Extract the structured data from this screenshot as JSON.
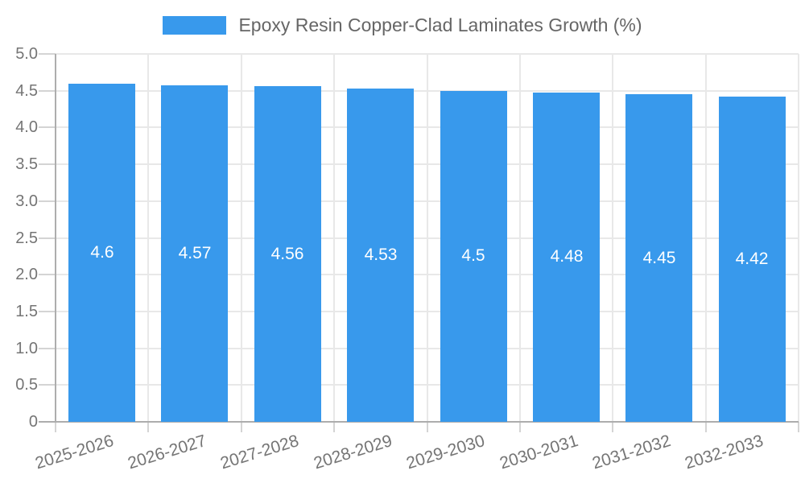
{
  "chart_data": {
    "type": "bar",
    "legend": "Epoxy Resin Copper-Clad Laminates Growth (%)",
    "legend_position": "top",
    "categories": [
      "2025-2026",
      "2026-2027",
      "2027-2028",
      "2028-2029",
      "2029-2030",
      "2030-2031",
      "2031-2032",
      "2032-2033"
    ],
    "values": [
      4.6,
      4.57,
      4.56,
      4.53,
      4.5,
      4.48,
      4.45,
      4.42
    ],
    "value_labels": [
      "4.6",
      "4.57",
      "4.56",
      "4.53",
      "4.5",
      "4.48",
      "4.45",
      "4.42"
    ],
    "xlabel": "",
    "ylabel": "",
    "ylim": [
      0,
      5
    ],
    "y_tick_step": 0.5,
    "y_tick_labels": [
      "0",
      "0.5",
      "1.0",
      "1.5",
      "2.0",
      "2.5",
      "3.0",
      "3.5",
      "4.0",
      "4.5",
      "5.0"
    ],
    "grid": true,
    "colors": {
      "bar": "#3899EC",
      "grid": "#E8E8E8",
      "outer_tick": "#D4D4D4",
      "axis": "#ADADAD",
      "tick_text": "#757575",
      "legend_text": "#666666",
      "value_text": "#FFFFFF",
      "background": "#FFFFFF"
    }
  }
}
